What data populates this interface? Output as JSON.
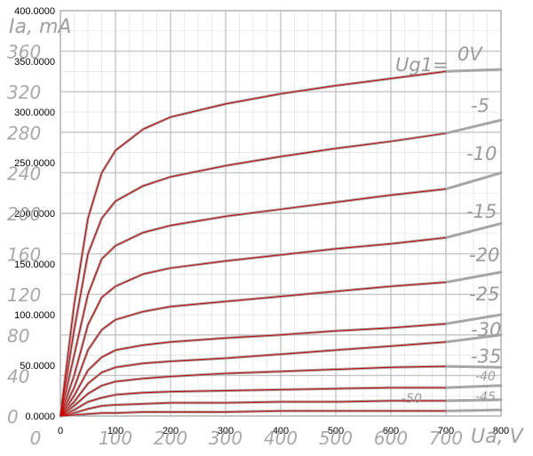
{
  "chart_data": {
    "type": "line",
    "title": "",
    "ylabel": "Ia, mA",
    "xlabel": "Ua, V",
    "xlim": [
      0,
      800
    ],
    "ylim": [
      0,
      400
    ],
    "grid": true,
    "x_ticks": [
      "0",
      "100",
      "200",
      "300",
      "400",
      "500",
      "600",
      "700",
      "800"
    ],
    "y_ticks": [
      "0.0000",
      "50.0000",
      "100.0000",
      "150.0000",
      "200.0000",
      "250.0000",
      "300.0000",
      "350.0000",
      "400.0000"
    ],
    "scan_y_ticks": [
      "0",
      "40",
      "80",
      "120",
      "160",
      "200",
      "240",
      "280",
      "320",
      "360"
    ],
    "scan_x_ticks": [
      "0",
      "100",
      "200",
      "300",
      "400",
      "500",
      "600",
      "700"
    ],
    "grid_label_prefix": "Ug1= ",
    "x": [
      0,
      25,
      50,
      75,
      100,
      150,
      200,
      300,
      400,
      500,
      600,
      700
    ],
    "series": [
      {
        "name": "0V",
        "label": "0V",
        "scan_end": 342,
        "values": [
          0,
          110,
          195,
          240,
          262,
          283,
          295,
          308,
          318,
          326,
          333,
          340
        ]
      },
      {
        "name": "-5",
        "label": "-5",
        "scan_end": 292,
        "values": [
          0,
          85,
          160,
          195,
          212,
          227,
          236,
          247,
          256,
          264,
          271,
          279
        ]
      },
      {
        "name": "-10",
        "label": "-10",
        "scan_end": 240,
        "values": [
          0,
          60,
          120,
          155,
          168,
          181,
          188,
          197,
          204,
          211,
          218,
          224
        ]
      },
      {
        "name": "-15",
        "label": "-15",
        "scan_end": 190,
        "values": [
          0,
          40,
          90,
          117,
          128,
          140,
          146,
          153,
          159,
          165,
          170,
          176
        ]
      },
      {
        "name": "-20",
        "label": "-20",
        "scan_end": 142,
        "values": [
          0,
          28,
          65,
          85,
          95,
          103,
          108,
          113,
          118,
          123,
          128,
          132
        ]
      },
      {
        "name": "-25",
        "label": "-25",
        "scan_end": 100,
        "values": [
          0,
          20,
          45,
          58,
          65,
          70,
          73,
          77,
          80,
          84,
          87,
          91
        ]
      },
      {
        "name": "-30",
        "label": "-30",
        "scan_end": 80,
        "values": [
          0,
          14,
          32,
          43,
          48,
          52,
          54,
          57,
          61,
          65,
          69,
          73
        ]
      },
      {
        "name": "-35",
        "label": "-35",
        "scan_end": 48,
        "values": [
          0,
          10,
          22,
          30,
          34,
          37,
          39,
          42,
          44,
          46,
          48,
          49
        ]
      },
      {
        "name": "-40",
        "label": "-40",
        "scan_end": 30,
        "values": [
          0,
          6,
          14,
          18,
          21,
          23,
          24,
          25,
          26,
          27,
          28,
          28
        ]
      },
      {
        "name": "-45",
        "label": "-45",
        "scan_end": 16,
        "values": [
          0,
          3,
          7,
          10,
          11,
          12,
          13,
          13,
          14,
          14,
          15,
          15
        ]
      },
      {
        "name": "-50",
        "label": "-50",
        "scan_end": 6,
        "values": [
          0,
          1,
          2,
          3,
          3,
          4,
          4,
          4,
          5,
          5,
          5,
          5
        ]
      }
    ],
    "colors": {
      "model_curve": "#cc0000",
      "scan_curve": "#a6a6a6",
      "grid": "#c4c4c4",
      "plot_border": "#8a8a8a"
    }
  }
}
